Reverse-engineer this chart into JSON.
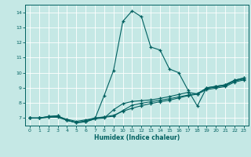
{
  "xlabel": "Humidex (Indice chaleur)",
  "bg_color": "#c5e8e5",
  "grid_color": "#ffffff",
  "line_color": "#006060",
  "xlim": [
    -0.5,
    23.5
  ],
  "ylim": [
    6.5,
    14.5
  ],
  "xticks": [
    0,
    1,
    2,
    3,
    4,
    5,
    6,
    7,
    8,
    9,
    10,
    11,
    12,
    13,
    14,
    15,
    16,
    17,
    18,
    19,
    20,
    21,
    22,
    23
  ],
  "yticks": [
    7,
    8,
    9,
    10,
    11,
    12,
    13,
    14
  ],
  "lines": [
    {
      "x": [
        0,
        1,
        2,
        3,
        4,
        5,
        6,
        7,
        8,
        9,
        10,
        11,
        12,
        13,
        14,
        15,
        16,
        17,
        18,
        19,
        20,
        21,
        22,
        23
      ],
      "y": [
        7.0,
        7.0,
        7.1,
        7.15,
        6.85,
        6.7,
        6.75,
        6.95,
        8.5,
        10.15,
        13.4,
        14.1,
        13.7,
        11.7,
        11.5,
        10.25,
        10.0,
        8.85,
        7.8,
        9.0,
        9.1,
        9.2,
        9.5,
        9.65
      ]
    },
    {
      "x": [
        0,
        1,
        2,
        3,
        4,
        5,
        6,
        7,
        8,
        9,
        10,
        11,
        12,
        13,
        14,
        15,
        16,
        17,
        18,
        19,
        20,
        21,
        22,
        23
      ],
      "y": [
        7.0,
        7.0,
        7.1,
        7.15,
        6.85,
        6.7,
        6.75,
        6.95,
        7.0,
        7.55,
        7.95,
        8.1,
        8.15,
        8.2,
        8.3,
        8.42,
        8.56,
        8.7,
        8.6,
        9.0,
        9.1,
        9.2,
        9.5,
        9.65
      ]
    },
    {
      "x": [
        0,
        1,
        2,
        3,
        4,
        5,
        6,
        7,
        8,
        9,
        10,
        11,
        12,
        13,
        14,
        15,
        16,
        17,
        18,
        19,
        20,
        21,
        22,
        23
      ],
      "y": [
        7.0,
        7.0,
        7.05,
        7.05,
        6.85,
        6.7,
        6.82,
        7.0,
        7.05,
        7.12,
        7.5,
        7.85,
        7.98,
        8.08,
        8.18,
        8.28,
        8.4,
        8.52,
        8.62,
        8.95,
        9.05,
        9.15,
        9.45,
        9.58
      ]
    },
    {
      "x": [
        0,
        1,
        2,
        3,
        4,
        5,
        6,
        7,
        8,
        9,
        10,
        11,
        12,
        13,
        14,
        15,
        16,
        17,
        18,
        19,
        20,
        21,
        22,
        23
      ],
      "y": [
        7.0,
        7.0,
        7.05,
        7.1,
        6.92,
        6.78,
        6.88,
        7.0,
        7.08,
        7.18,
        7.45,
        7.65,
        7.82,
        7.96,
        8.08,
        8.18,
        8.33,
        8.48,
        8.58,
        8.88,
        8.98,
        9.08,
        9.38,
        9.52
      ]
    }
  ]
}
